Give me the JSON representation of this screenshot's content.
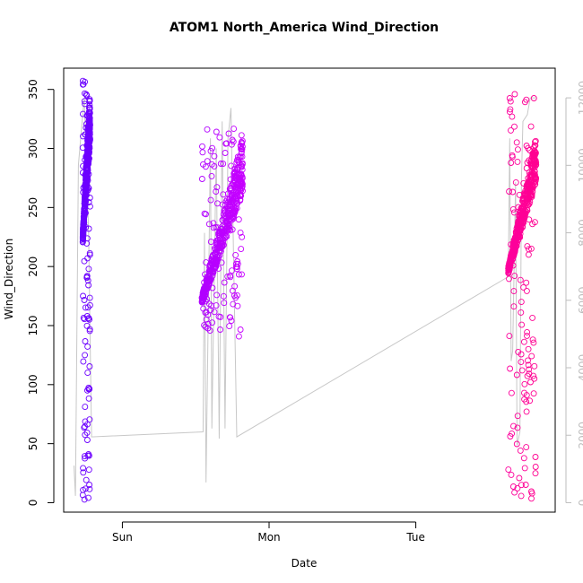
{
  "chart_data": {
    "type": "scatter",
    "title": "ATOM1 North_America Wind_Direction",
    "xlabel": "Date",
    "ylabel": "Wind_Direction",
    "x_ticks": [
      "Sun",
      "Mon",
      "Tue"
    ],
    "x_tick_positions_days": [
      1,
      2,
      3
    ],
    "xlim_days": [
      0.6,
      3.95
    ],
    "ylim": [
      -8,
      368
    ],
    "y_ticks": [
      0,
      50,
      100,
      150,
      200,
      250,
      300,
      350
    ],
    "y2_ticks": [
      0,
      2000,
      4000,
      6000,
      8000,
      10000,
      12000
    ],
    "y2lim": [
      -280,
      12880
    ],
    "grid": false,
    "colors": {
      "start": "#6a00ff",
      "mid": "#ee00ff",
      "end": "#ff0090",
      "line": "#c8c8c8",
      "right_axis": "#bdbdbd"
    },
    "series": [
      {
        "values_summary": "Wind_Direction observations (open circles)",
        "segments": [
          {
            "x_range": [
              0.73,
              0.78
            ],
            "y_min": 0,
            "y_max": 358,
            "y_core": [
              205,
              350
            ]
          },
          {
            "x_range": [
              1.54,
              1.82
            ],
            "y_min": 140,
            "y_max": 318,
            "y_core": [
              150,
              310
            ]
          },
          {
            "x_range": [
              3.63,
              3.82
            ],
            "y_min": 0,
            "y_max": 355,
            "y_core": [
              180,
              310
            ]
          }
        ]
      },
      {
        "values_summary": "secondary axis trace (grey line)",
        "points": [
          [
            0.67,
            1100
          ],
          [
            0.68,
            200
          ],
          [
            0.7,
            10000
          ],
          [
            0.72,
            11000
          ],
          [
            0.74,
            12000
          ],
          [
            0.77,
            8000
          ],
          [
            0.78,
            5000
          ],
          [
            0.79,
            1950
          ],
          [
            1.55,
            2100
          ],
          [
            1.56,
            8000
          ],
          [
            1.57,
            600
          ],
          [
            1.59,
            7000
          ],
          [
            1.6,
            10800
          ],
          [
            1.61,
            2200
          ],
          [
            1.64,
            10500
          ],
          [
            1.66,
            1900
          ],
          [
            1.68,
            11300
          ],
          [
            1.7,
            2200
          ],
          [
            1.72,
            10800
          ],
          [
            1.74,
            11700
          ],
          [
            1.76,
            6700
          ],
          [
            1.78,
            1950
          ],
          [
            3.63,
            6700
          ],
          [
            3.64,
            10800
          ],
          [
            3.65,
            4200
          ],
          [
            3.66,
            4500
          ],
          [
            3.68,
            9500
          ],
          [
            3.69,
            1700
          ],
          [
            3.71,
            2100
          ],
          [
            3.72,
            9600
          ],
          [
            3.73,
            11300
          ],
          [
            3.76,
            11500
          ],
          [
            3.78,
            12000
          ],
          [
            3.8,
            12000
          ],
          [
            3.82,
            12000
          ]
        ]
      }
    ]
  }
}
